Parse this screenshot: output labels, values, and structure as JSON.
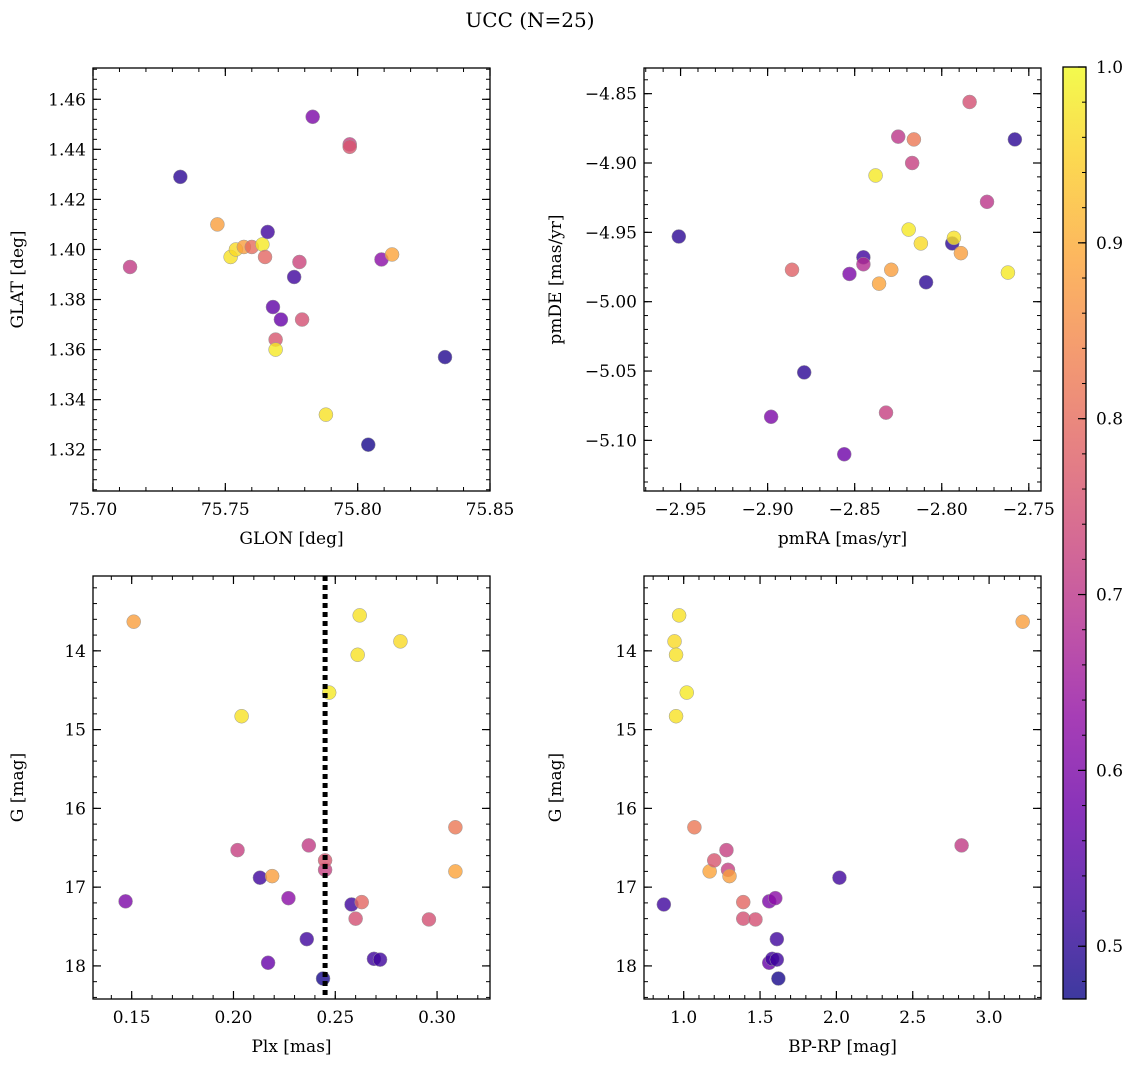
{
  "figure": {
    "title": "UCC (N=25)"
  },
  "colormap": {
    "name": "plasma",
    "min": 0.47,
    "max": 1.0,
    "alpha": 0.8,
    "ticks": [
      0.5,
      0.6,
      0.7,
      0.8,
      0.9,
      1.0
    ],
    "tick_labels": [
      "0.5",
      "0.6",
      "0.7",
      "0.8",
      "0.9",
      "1.0"
    ]
  },
  "chart_data": [
    {
      "type": "scatter",
      "id": "glon-glat",
      "xlabel": "GLON [deg]",
      "ylabel": "GLAT [deg]",
      "xlim": [
        75.7,
        75.85
      ],
      "ylim": [
        1.3035,
        1.4725
      ],
      "y_inverted": false,
      "x_ticks": [
        75.7,
        75.75,
        75.8,
        75.85
      ],
      "x_tick_labels": [
        "75.70",
        "75.75",
        "75.80",
        "75.85"
      ],
      "y_ticks": [
        1.32,
        1.34,
        1.36,
        1.38,
        1.4,
        1.42,
        1.44,
        1.46
      ],
      "y_tick_labels": [
        "1.32",
        "1.34",
        "1.36",
        "1.38",
        "1.40",
        "1.42",
        "1.44",
        "1.46"
      ],
      "points": [
        {
          "x": 75.714,
          "y": 1.393,
          "c": 0.71
        },
        {
          "x": 75.733,
          "y": 1.429,
          "c": 0.5
        },
        {
          "x": 75.747,
          "y": 1.41,
          "c": 0.88
        },
        {
          "x": 75.752,
          "y": 1.397,
          "c": 0.97
        },
        {
          "x": 75.754,
          "y": 1.4,
          "c": 0.96
        },
        {
          "x": 75.757,
          "y": 1.401,
          "c": 0.88
        },
        {
          "x": 75.76,
          "y": 1.401,
          "c": 0.8
        },
        {
          "x": 75.764,
          "y": 1.402,
          "c": 0.98
        },
        {
          "x": 75.765,
          "y": 1.397,
          "c": 0.79
        },
        {
          "x": 75.766,
          "y": 1.407,
          "c": 0.52
        },
        {
          "x": 75.768,
          "y": 1.377,
          "c": 0.56
        },
        {
          "x": 75.769,
          "y": 1.364,
          "c": 0.76
        },
        {
          "x": 75.769,
          "y": 1.36,
          "c": 0.98
        },
        {
          "x": 75.771,
          "y": 1.372,
          "c": 0.57
        },
        {
          "x": 75.776,
          "y": 1.389,
          "c": 0.52
        },
        {
          "x": 75.778,
          "y": 1.395,
          "c": 0.73
        },
        {
          "x": 75.779,
          "y": 1.372,
          "c": 0.75
        },
        {
          "x": 75.783,
          "y": 1.453,
          "c": 0.6
        },
        {
          "x": 75.788,
          "y": 1.334,
          "c": 0.97
        },
        {
          "x": 75.797,
          "y": 1.442,
          "c": 0.72
        },
        {
          "x": 75.797,
          "y": 1.441,
          "c": 0.76
        },
        {
          "x": 75.804,
          "y": 1.322,
          "c": 0.48
        },
        {
          "x": 75.809,
          "y": 1.396,
          "c": 0.62
        },
        {
          "x": 75.813,
          "y": 1.398,
          "c": 0.89
        },
        {
          "x": 75.833,
          "y": 1.357,
          "c": 0.49
        }
      ]
    },
    {
      "type": "scatter",
      "id": "pmra-pmde",
      "xlabel": "pmRA [mas/yr]",
      "ylabel": "pmDE [mas/yr]",
      "xlim": [
        -2.971,
        -2.743
      ],
      "ylim": [
        -5.1365,
        -4.8315
      ],
      "y_inverted": false,
      "x_ticks": [
        -2.95,
        -2.9,
        -2.85,
        -2.8,
        -2.75
      ],
      "x_tick_labels": [
        "−2.95",
        "−2.90",
        "−2.85",
        "−2.80",
        "−2.75"
      ],
      "y_ticks": [
        -5.1,
        -5.05,
        -5.0,
        -4.95,
        -4.9,
        -4.85
      ],
      "y_tick_labels": [
        "−5.10",
        "−5.05",
        "−5.00",
        "−4.95",
        "−4.90",
        "−4.85"
      ],
      "points": [
        {
          "x": -2.951,
          "y": -4.953,
          "c": 0.5
        },
        {
          "x": -2.898,
          "y": -5.083,
          "c": 0.6
        },
        {
          "x": -2.886,
          "y": -4.977,
          "c": 0.78
        },
        {
          "x": -2.879,
          "y": -5.051,
          "c": 0.5
        },
        {
          "x": -2.856,
          "y": -5.11,
          "c": 0.58
        },
        {
          "x": -2.853,
          "y": -4.98,
          "c": 0.6
        },
        {
          "x": -2.845,
          "y": -4.968,
          "c": 0.52
        },
        {
          "x": -2.845,
          "y": -4.973,
          "c": 0.68
        },
        {
          "x": -2.838,
          "y": -4.909,
          "c": 0.98
        },
        {
          "x": -2.836,
          "y": -4.987,
          "c": 0.89
        },
        {
          "x": -2.832,
          "y": -5.08,
          "c": 0.72
        },
        {
          "x": -2.829,
          "y": -4.977,
          "c": 0.88
        },
        {
          "x": -2.825,
          "y": -4.881,
          "c": 0.7
        },
        {
          "x": -2.819,
          "y": -4.948,
          "c": 0.98
        },
        {
          "x": -2.817,
          "y": -4.9,
          "c": 0.72
        },
        {
          "x": -2.816,
          "y": -4.883,
          "c": 0.82
        },
        {
          "x": -2.812,
          "y": -4.958,
          "c": 0.96
        },
        {
          "x": -2.809,
          "y": -4.986,
          "c": 0.5
        },
        {
          "x": -2.794,
          "y": -4.958,
          "c": 0.5
        },
        {
          "x": -2.793,
          "y": -4.954,
          "c": 0.97
        },
        {
          "x": -2.789,
          "y": -4.965,
          "c": 0.88
        },
        {
          "x": -2.774,
          "y": -4.928,
          "c": 0.7
        },
        {
          "x": -2.784,
          "y": -4.856,
          "c": 0.75
        },
        {
          "x": -2.762,
          "y": -4.979,
          "c": 0.98
        },
        {
          "x": -2.758,
          "y": -4.883,
          "c": 0.5
        }
      ]
    },
    {
      "type": "scatter",
      "id": "plx-g",
      "xlabel": "Plx [mas]",
      "ylabel": "G [mag]",
      "xlim": [
        0.131,
        0.326
      ],
      "ylim": [
        13.05,
        18.42
      ],
      "y_inverted": true,
      "x_ticks": [
        0.15,
        0.2,
        0.25,
        0.3
      ],
      "x_tick_labels": [
        "0.15",
        "0.20",
        "0.25",
        "0.30"
      ],
      "y_ticks": [
        14,
        15,
        16,
        17,
        18
      ],
      "y_tick_labels": [
        "14",
        "15",
        "16",
        "17",
        "18"
      ],
      "vline": {
        "x": 0.245
      },
      "points": [
        {
          "x": 0.151,
          "y": 13.63,
          "c": 0.88
        },
        {
          "x": 0.147,
          "y": 17.18,
          "c": 0.6
        },
        {
          "x": 0.202,
          "y": 16.53,
          "c": 0.72
        },
        {
          "x": 0.204,
          "y": 14.83,
          "c": 0.97
        },
        {
          "x": 0.213,
          "y": 16.88,
          "c": 0.52
        },
        {
          "x": 0.217,
          "y": 17.96,
          "c": 0.57
        },
        {
          "x": 0.219,
          "y": 16.86,
          "c": 0.88
        },
        {
          "x": 0.227,
          "y": 17.14,
          "c": 0.62
        },
        {
          "x": 0.236,
          "y": 17.66,
          "c": 0.52
        },
        {
          "x": 0.237,
          "y": 16.47,
          "c": 0.71
        },
        {
          "x": 0.244,
          "y": 18.16,
          "c": 0.48
        },
        {
          "x": 0.245,
          "y": 16.78,
          "c": 0.72
        },
        {
          "x": 0.245,
          "y": 16.66,
          "c": 0.76
        },
        {
          "x": 0.247,
          "y": 14.53,
          "c": 0.98
        },
        {
          "x": 0.258,
          "y": 17.22,
          "c": 0.52
        },
        {
          "x": 0.26,
          "y": 17.4,
          "c": 0.75
        },
        {
          "x": 0.261,
          "y": 14.05,
          "c": 0.97
        },
        {
          "x": 0.262,
          "y": 13.55,
          "c": 0.97
        },
        {
          "x": 0.263,
          "y": 17.19,
          "c": 0.79
        },
        {
          "x": 0.269,
          "y": 17.91,
          "c": 0.52
        },
        {
          "x": 0.272,
          "y": 17.92,
          "c": 0.52
        },
        {
          "x": 0.282,
          "y": 13.88,
          "c": 0.96
        },
        {
          "x": 0.296,
          "y": 17.41,
          "c": 0.75
        },
        {
          "x": 0.309,
          "y": 16.24,
          "c": 0.82
        },
        {
          "x": 0.309,
          "y": 16.8,
          "c": 0.89
        }
      ]
    },
    {
      "type": "scatter",
      "id": "bprp-g",
      "xlabel": "BP-RP [mag]",
      "ylabel": "G [mag]",
      "xlim": [
        0.74,
        3.34
      ],
      "ylim": [
        13.05,
        18.42
      ],
      "y_inverted": true,
      "x_ticks": [
        1.0,
        1.5,
        2.0,
        2.5,
        3.0
      ],
      "x_tick_labels": [
        "1.0",
        "1.5",
        "2.0",
        "2.5",
        "3.0"
      ],
      "y_ticks": [
        14,
        15,
        16,
        17,
        18
      ],
      "y_tick_labels": [
        "14",
        "15",
        "16",
        "17",
        "18"
      ],
      "points": [
        {
          "x": 0.87,
          "y": 17.22,
          "c": 0.52
        },
        {
          "x": 0.94,
          "y": 13.88,
          "c": 0.96
        },
        {
          "x": 0.95,
          "y": 14.05,
          "c": 0.97
        },
        {
          "x": 0.95,
          "y": 14.83,
          "c": 0.97
        },
        {
          "x": 0.97,
          "y": 13.55,
          "c": 0.97
        },
        {
          "x": 1.02,
          "y": 14.53,
          "c": 0.98
        },
        {
          "x": 1.07,
          "y": 16.24,
          "c": 0.82
        },
        {
          "x": 1.17,
          "y": 16.8,
          "c": 0.89
        },
        {
          "x": 1.2,
          "y": 16.66,
          "c": 0.76
        },
        {
          "x": 1.28,
          "y": 16.53,
          "c": 0.72
        },
        {
          "x": 1.29,
          "y": 16.78,
          "c": 0.72
        },
        {
          "x": 1.3,
          "y": 16.86,
          "c": 0.88
        },
        {
          "x": 1.39,
          "y": 17.19,
          "c": 0.79
        },
        {
          "x": 1.39,
          "y": 17.4,
          "c": 0.75
        },
        {
          "x": 1.47,
          "y": 17.41,
          "c": 0.75
        },
        {
          "x": 1.56,
          "y": 17.18,
          "c": 0.6
        },
        {
          "x": 1.56,
          "y": 17.96,
          "c": 0.57
        },
        {
          "x": 1.58,
          "y": 17.91,
          "c": 0.52
        },
        {
          "x": 1.6,
          "y": 17.14,
          "c": 0.62
        },
        {
          "x": 1.61,
          "y": 17.92,
          "c": 0.52
        },
        {
          "x": 1.61,
          "y": 17.66,
          "c": 0.52
        },
        {
          "x": 1.62,
          "y": 18.16,
          "c": 0.48
        },
        {
          "x": 2.02,
          "y": 16.88,
          "c": 0.52
        },
        {
          "x": 2.82,
          "y": 16.47,
          "c": 0.71
        },
        {
          "x": 3.22,
          "y": 13.63,
          "c": 0.88
        }
      ]
    }
  ]
}
